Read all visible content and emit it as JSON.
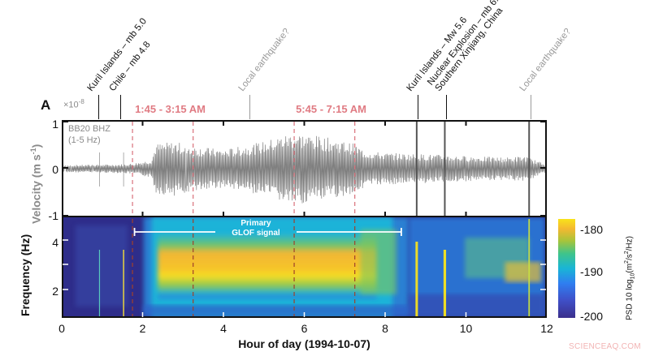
{
  "chart_data": [
    {
      "type": "line",
      "panel": "A (top)",
      "title": "",
      "trace_label": "BB20 BHZ",
      "trace_band": "(1-5 Hz)",
      "xlabel": "Hour of day (1994-10-07)",
      "ylabel": "Velocity (m s-1)",
      "y_exponent": "×10^-8",
      "xlim": [
        0,
        12
      ],
      "ylim": [
        -1,
        1
      ],
      "yticks": [
        -1,
        0,
        1
      ],
      "xticks": [
        0,
        2,
        4,
        6,
        8,
        10,
        12
      ],
      "envelope_x_hours": [
        0,
        1.0,
        1.5,
        1.75,
        2.2,
        2.3,
        2.8,
        3.25,
        4.0,
        5.0,
        5.5,
        5.75,
        6.5,
        7.25,
        7.5,
        8.0,
        9.0,
        10.0,
        11.0,
        11.5,
        12.0
      ],
      "envelope_amp_1e-8": [
        0.08,
        0.09,
        0.1,
        0.12,
        0.2,
        0.55,
        0.6,
        0.5,
        0.42,
        0.6,
        0.75,
        0.8,
        0.7,
        0.55,
        0.4,
        0.35,
        0.32,
        0.28,
        0.25,
        0.28,
        0.1
      ],
      "event_spikes_hours": [
        0.9,
        1.5,
        8.8,
        9.5,
        11.6
      ],
      "grid": false
    },
    {
      "type": "heatmap",
      "panel": "A (bottom)",
      "xlabel": "Hour of day (1994-10-07)",
      "ylabel": "Frequency (Hz)",
      "xlim": [
        0,
        12
      ],
      "ylim": [
        1,
        5
      ],
      "yticks": [
        2,
        3,
        4
      ],
      "ytick_labels": [
        "2",
        "",
        "4"
      ],
      "colorbar": {
        "label": "PSD 10 log10(m^2/s^2/Hz)",
        "range": [
          -200,
          -178
        ],
        "ticks": [
          -180,
          -190,
          -200
        ],
        "colormap": "parula"
      },
      "annotation": "Primary GLOF signal",
      "annotation_span_hours": [
        1.8,
        8.4
      ],
      "high_power_region": {
        "hours": [
          2.3,
          7.8
        ],
        "freq_hz": [
          1.8,
          4.2
        ],
        "psd": -180
      },
      "background_psd": -198
    }
  ],
  "figure": {
    "panel_label": "A",
    "y_exponent_base": "×10",
    "y_exponent_power": "-8",
    "trace_name": "BB20 BHZ",
    "trace_band": "(1-5 Hz)",
    "ylabel_velocity": "Velocity (m s",
    "ylabel_velocity_sup": "-1",
    "ylabel_velocity_end": ")",
    "ylabel_frequency": "Frequency (Hz)",
    "xlabel": "Hour of day (1994-10-07)",
    "velocity_ticks": [
      "1",
      "0",
      "-1"
    ],
    "frequency_ticks": [
      "4",
      "2"
    ],
    "x_ticks": [
      "0",
      "2",
      "4",
      "6",
      "8",
      "10",
      "12"
    ],
    "time_windows": [
      {
        "label": "1:45 - 3:15 AM",
        "start": 1.75,
        "end": 3.25
      },
      {
        "label": "5:45 - 7:15 AM",
        "start": 5.75,
        "end": 7.25
      }
    ],
    "glof_label_line1": "Primary",
    "glof_label_line2": "GLOF signal",
    "colorbar_ticks": [
      "-180",
      "-190",
      "-200"
    ],
    "colorbar_label": "PSD 10 log",
    "colorbar_label_sub": "10",
    "colorbar_label_end": "(m",
    "colorbar_label_rest": "/s",
    "colorbar_label_tail": "/Hz)",
    "colorbar_sup": "2",
    "colors": {
      "window_red": "#e07b83",
      "trace_gray": "#7f7f7f",
      "annotation_gray": "#999999",
      "spec_low": "#2e2d8a",
      "spec_mid": "#19b5d6",
      "spec_high": "#f8e31a"
    },
    "events": [
      {
        "label": "Kuril Islands – mb 5.0",
        "hour": 0.9,
        "color": "#111111"
      },
      {
        "label": "Chile – mb 4.8",
        "hour": 1.45,
        "color": "#111111"
      },
      {
        "label": "Local earthquake?",
        "hour": 4.65,
        "color": "#9a9a9a"
      },
      {
        "label": "Kuril Islands – Mw 5.6",
        "hour": 8.8,
        "color": "#111111"
      },
      {
        "label": "Nuclear Explosion – mb 6.0",
        "label2": "Southern Xinjiang, China",
        "hour": 9.5,
        "color": "#111111"
      },
      {
        "label": "Local earthquake?",
        "hour": 11.6,
        "color": "#9a9a9a"
      }
    ]
  },
  "watermark": "SCIENCEAQ.COM"
}
